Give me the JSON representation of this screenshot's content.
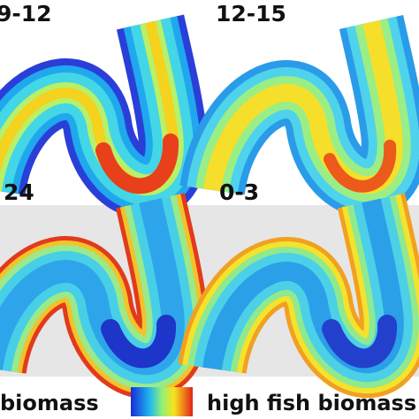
{
  "panels": [
    {
      "label": "9-12"
    },
    {
      "label": "12-15"
    },
    {
      "label": "24"
    },
    {
      "label": "0-3"
    }
  ],
  "legend": {
    "low_label": "biomass",
    "high_label": "high fish biomass"
  }
}
